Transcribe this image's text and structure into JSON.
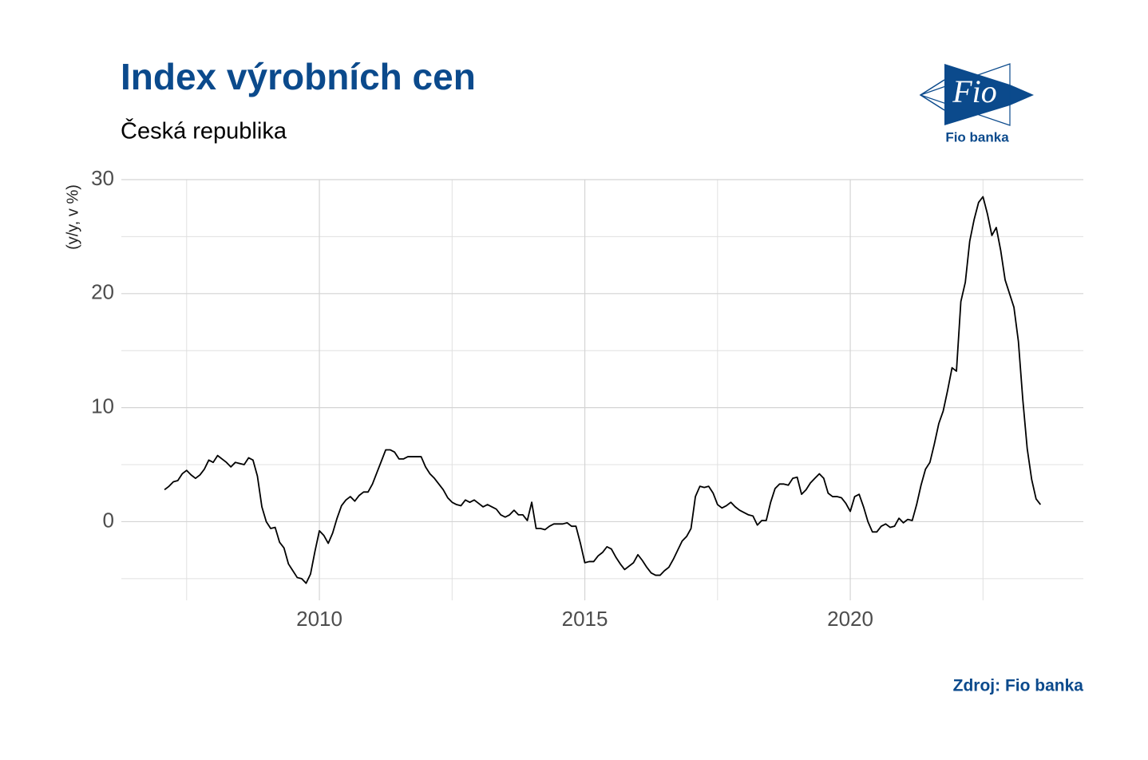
{
  "chart_data": {
    "type": "line",
    "title": "Index výrobních cen",
    "subtitle": "Česká republika",
    "y_label": "(y/y, v %)",
    "source": "Zdroj: Fio banka",
    "logo": {
      "mark": "Fio",
      "name": "Fio banka"
    },
    "color": "#000000",
    "grid": true,
    "xlim": [
      2006.27,
      2024.39
    ],
    "xticks": [
      2010,
      2015,
      2020
    ],
    "xminor": [
      2007.5,
      2012.5,
      2017.5,
      2022.5
    ],
    "ylim": [
      -6.9,
      30
    ],
    "yticks": [
      0,
      10,
      20,
      30
    ],
    "yminor": [
      -5,
      5,
      15,
      25
    ],
    "x": [
      2007.083,
      2007.167,
      2007.25,
      2007.333,
      2007.417,
      2007.5,
      2007.583,
      2007.667,
      2007.75,
      2007.833,
      2007.917,
      2008,
      2008.083,
      2008.167,
      2008.25,
      2008.333,
      2008.417,
      2008.5,
      2008.583,
      2008.667,
      2008.75,
      2008.833,
      2008.917,
      2009,
      2009.083,
      2009.167,
      2009.25,
      2009.333,
      2009.417,
      2009.5,
      2009.583,
      2009.667,
      2009.75,
      2009.833,
      2009.917,
      2010,
      2010.083,
      2010.167,
      2010.25,
      2010.333,
      2010.417,
      2010.5,
      2010.583,
      2010.667,
      2010.75,
      2010.833,
      2010.917,
      2011,
      2011.083,
      2011.167,
      2011.25,
      2011.333,
      2011.417,
      2011.5,
      2011.583,
      2011.667,
      2011.75,
      2011.833,
      2011.917,
      2012,
      2012.083,
      2012.167,
      2012.25,
      2012.333,
      2012.417,
      2012.5,
      2012.583,
      2012.667,
      2012.75,
      2012.833,
      2012.917,
      2013,
      2013.083,
      2013.167,
      2013.25,
      2013.333,
      2013.417,
      2013.5,
      2013.583,
      2013.667,
      2013.75,
      2013.833,
      2013.917,
      2014,
      2014.083,
      2014.167,
      2014.25,
      2014.333,
      2014.417,
      2014.5,
      2014.583,
      2014.667,
      2014.75,
      2014.833,
      2014.917,
      2015,
      2015.083,
      2015.167,
      2015.25,
      2015.333,
      2015.417,
      2015.5,
      2015.583,
      2015.667,
      2015.75,
      2015.833,
      2015.917,
      2016,
      2016.083,
      2016.167,
      2016.25,
      2016.333,
      2016.417,
      2016.5,
      2016.583,
      2016.667,
      2016.75,
      2016.833,
      2016.917,
      2017,
      2017.083,
      2017.167,
      2017.25,
      2017.333,
      2017.417,
      2017.5,
      2017.583,
      2017.667,
      2017.75,
      2017.833,
      2017.917,
      2018,
      2018.083,
      2018.167,
      2018.25,
      2018.333,
      2018.417,
      2018.5,
      2018.583,
      2018.667,
      2018.75,
      2018.833,
      2018.917,
      2019,
      2019.083,
      2019.167,
      2019.25,
      2019.333,
      2019.417,
      2019.5,
      2019.583,
      2019.667,
      2019.75,
      2019.833,
      2019.917,
      2020,
      2020.083,
      2020.167,
      2020.25,
      2020.333,
      2020.417,
      2020.5,
      2020.583,
      2020.667,
      2020.75,
      2020.833,
      2020.917,
      2021,
      2021.083,
      2021.167,
      2021.25,
      2021.333,
      2021.417,
      2021.5,
      2021.583,
      2021.667,
      2021.75,
      2021.833,
      2021.917,
      2022,
      2022.083,
      2022.167,
      2022.25,
      2022.333,
      2022.417,
      2022.5,
      2022.583,
      2022.667,
      2022.75,
      2022.833,
      2022.917,
      2023,
      2023.083,
      2023.167,
      2023.25,
      2023.333,
      2023.417,
      2023.5,
      2023.583
    ],
    "values": [
      2.8,
      3.1,
      3.5,
      3.6,
      4.2,
      4.5,
      4.1,
      3.8,
      4.1,
      4.6,
      5.4,
      5.2,
      5.8,
      5.5,
      5.2,
      4.8,
      5.2,
      5.1,
      5.0,
      5.6,
      5.4,
      4.0,
      1.3,
      0.0,
      -0.6,
      -0.5,
      -1.8,
      -2.3,
      -3.7,
      -4.3,
      -4.9,
      -5.0,
      -5.4,
      -4.6,
      -2.6,
      -0.8,
      -1.2,
      -1.9,
      -1.0,
      0.3,
      1.4,
      1.9,
      2.2,
      1.8,
      2.3,
      2.6,
      2.6,
      3.3,
      4.3,
      5.3,
      6.3,
      6.3,
      6.1,
      5.5,
      5.5,
      5.7,
      5.7,
      5.7,
      5.7,
      4.8,
      4.2,
      3.8,
      3.3,
      2.8,
      2.1,
      1.7,
      1.5,
      1.4,
      1.9,
      1.7,
      1.9,
      1.6,
      1.3,
      1.5,
      1.3,
      1.1,
      0.6,
      0.4,
      0.6,
      1.0,
      0.6,
      0.6,
      0.1,
      1.7,
      -0.6,
      -0.6,
      -0.7,
      -0.4,
      -0.2,
      -0.2,
      -0.2,
      -0.1,
      -0.4,
      -0.4,
      -1.9,
      -3.6,
      -3.5,
      -3.5,
      -3.0,
      -2.7,
      -2.2,
      -2.4,
      -3.1,
      -3.7,
      -4.2,
      -3.9,
      -3.6,
      -2.9,
      -3.4,
      -4.0,
      -4.5,
      -4.7,
      -4.7,
      -4.3,
      -4.0,
      -3.3,
      -2.5,
      -1.7,
      -1.3,
      -0.6,
      2.2,
      3.1,
      3.0,
      3.1,
      2.5,
      1.5,
      1.2,
      1.4,
      1.7,
      1.3,
      1.0,
      0.8,
      0.6,
      0.5,
      -0.3,
      0.1,
      0.1,
      1.7,
      2.9,
      3.3,
      3.3,
      3.2,
      3.8,
      3.9,
      2.4,
      2.8,
      3.4,
      3.8,
      4.2,
      3.8,
      2.5,
      2.2,
      2.2,
      2.1,
      1.6,
      0.9,
      2.2,
      2.4,
      1.3,
      0.0,
      -0.9,
      -0.9,
      -0.4,
      -0.2,
      -0.5,
      -0.4,
      0.3,
      -0.1,
      0.2,
      0.1,
      1.5,
      3.2,
      4.6,
      5.2,
      6.8,
      8.6,
      9.7,
      11.5,
      13.5,
      13.2,
      19.3,
      21.0,
      24.6,
      26.5,
      28.0,
      28.5,
      27.0,
      25.1,
      25.8,
      23.8,
      21.2,
      20.0,
      18.8,
      15.8,
      10.7,
      6.4,
      3.7,
      2.0,
      1.5
    ]
  }
}
